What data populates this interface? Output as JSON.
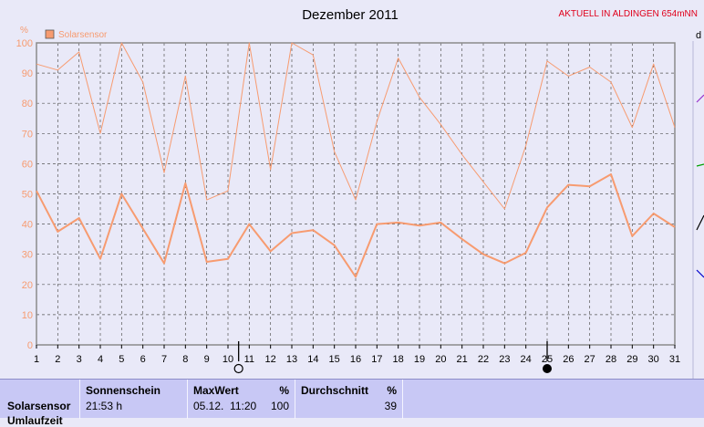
{
  "header": {
    "title": "Dezember 2011",
    "location": "AKTUELL IN ALDINGEN 654mNN",
    "right_edge_char": "d"
  },
  "colors": {
    "background": "#e9e9f8",
    "plot_background": "#e9e9f8",
    "series": "#f79b70",
    "location_text": "#e0001b",
    "footer": "#c8c8f5"
  },
  "chart_data": {
    "type": "line",
    "title": "Dezember 2011",
    "ylabel": "%",
    "ylim": [
      0,
      100
    ],
    "yticks": [
      0,
      10,
      20,
      30,
      40,
      50,
      60,
      70,
      80,
      90,
      100
    ],
    "x": [
      1,
      2,
      3,
      4,
      5,
      6,
      7,
      8,
      9,
      10,
      11,
      12,
      13,
      14,
      15,
      16,
      17,
      18,
      19,
      20,
      21,
      22,
      23,
      24,
      25,
      26,
      27,
      28,
      29,
      30,
      31
    ],
    "grid": true,
    "legend": "top-left",
    "series": [
      {
        "name": "Solarsensor",
        "values": [
          93,
          91,
          97,
          70,
          100,
          87,
          57,
          89,
          48,
          51,
          100,
          58,
          100,
          96,
          64,
          48,
          74,
          95,
          82,
          73,
          63,
          54,
          45,
          66,
          94,
          89,
          92,
          87,
          72,
          93,
          72
        ]
      },
      {
        "values": [
          51,
          37.5,
          42,
          28.5,
          50,
          38.5,
          27,
          53.5,
          27.5,
          28.5,
          40,
          31,
          37,
          38,
          33,
          22.5,
          40,
          40.5,
          39.5,
          40.5,
          35,
          30,
          27,
          30.5,
          45.5,
          53,
          52.5,
          56.5,
          36,
          43.5,
          39
        ]
      }
    ],
    "markers": [
      {
        "x": 10.5,
        "type": "new-moon"
      },
      {
        "x": 25,
        "type": "full-moon"
      }
    ]
  },
  "footer": {
    "sensor_label": "Solarsensor",
    "sensor_sublabel": "Umlaufzeit",
    "sunshine_header": "Sonnenschein",
    "sunshine_value": "21:53 h",
    "max_header": "MaxWert",
    "max_unit": "%",
    "max_time": "05.12.  11:20",
    "max_value": "100",
    "avg_header": "Durchschnitt",
    "avg_unit": "%",
    "avg_value": "39"
  }
}
